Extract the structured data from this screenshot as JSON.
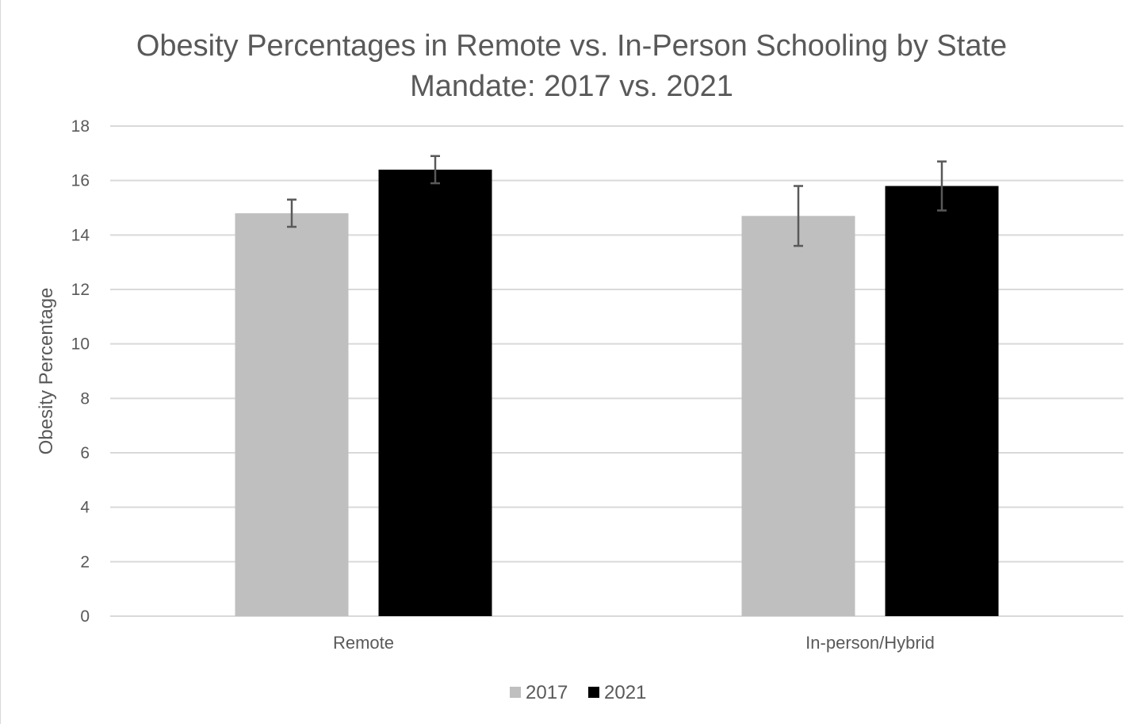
{
  "chart_data": {
    "type": "bar",
    "title": [
      "Obesity Percentages in Remote vs. In-Person Schooling by State",
      "Mandate: 2017 vs. 2021"
    ],
    "xlabel": "",
    "ylabel": "Obesity Percentage",
    "ylim": [
      0,
      18
    ],
    "yticks": [
      0,
      2,
      4,
      6,
      8,
      10,
      12,
      14,
      16,
      18
    ],
    "categories": [
      "Remote",
      "In-person/Hybrid"
    ],
    "series": [
      {
        "name": "2017",
        "color": "#bfbfbf",
        "values": [
          14.8,
          14.7
        ],
        "error": [
          0.5,
          1.1
        ]
      },
      {
        "name": "2021",
        "color": "#000000",
        "values": [
          16.4,
          15.8
        ],
        "error": [
          0.5,
          0.9
        ]
      }
    ],
    "grid": true,
    "legend_position": "bottom"
  }
}
